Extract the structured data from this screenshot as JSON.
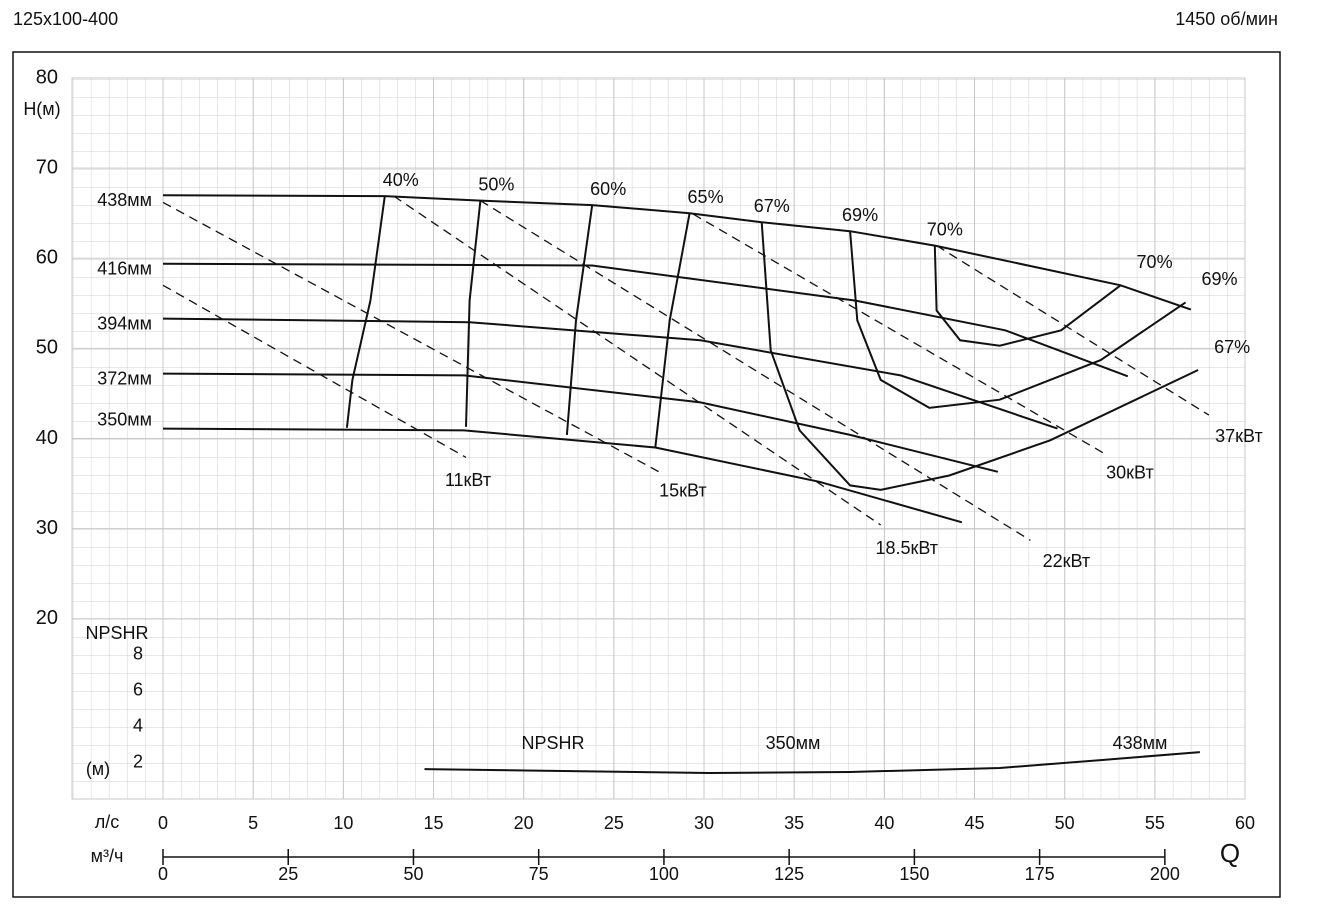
{
  "chart_data": {
    "type": "line",
    "title": "125х100-400",
    "subtitle": "1450 об/мин",
    "y_label": "Н(м)",
    "x_label": "л/с",
    "x2_label": "м³/ч",
    "x_symbol": "Q",
    "xlim": [
      0,
      60
    ],
    "xticks": [
      0,
      5,
      10,
      15,
      20,
      25,
      30,
      35,
      40,
      45,
      50,
      55,
      60
    ],
    "x2lim": [
      0,
      216
    ],
    "x2ticks": [
      0,
      25,
      50,
      75,
      100,
      125,
      150,
      175,
      200
    ],
    "ylim": [
      0,
      80
    ],
    "yticks": [
      20,
      30,
      40,
      50,
      60,
      70,
      80
    ],
    "y2_label": "NPSHR",
    "y2_unit": "(м)",
    "y2lim": [
      0,
      40
    ],
    "y2ticks": [
      2,
      4,
      6,
      8
    ],
    "grid": true,
    "series": [
      {
        "name": "438мм",
        "color": "#111111",
        "x": [
          0,
          12.3,
          17.6,
          23.8,
          29.2,
          33.2,
          38.1,
          42.8,
          53.1,
          57.0
        ],
        "values": [
          67.0,
          66.9,
          66.4,
          65.9,
          65.0,
          64.0,
          63.0,
          61.4,
          57.0,
          54.3
        ]
      },
      {
        "name": "416мм",
        "color": "#111111",
        "x": [
          0,
          23.8,
          38.4,
          46.7,
          53.5
        ],
        "values": [
          59.4,
          59.2,
          55.3,
          52.0,
          46.9
        ]
      },
      {
        "name": "394мм",
        "color": "#111111",
        "x": [
          0,
          17.0,
          29.8,
          40.9,
          49.6
        ],
        "values": [
          53.3,
          52.9,
          50.9,
          47.0,
          41.1
        ]
      },
      {
        "name": "372мм",
        "color": "#111111",
        "x": [
          0,
          16.7,
          29.8,
          38.1,
          46.3
        ],
        "values": [
          47.2,
          47.0,
          44.0,
          40.4,
          36.3
        ]
      },
      {
        "name": "350мм",
        "color": "#111111",
        "x": [
          0,
          16.7,
          27.3,
          36.4,
          44.3
        ],
        "values": [
          41.1,
          40.9,
          39.0,
          35.2,
          30.7
        ]
      }
    ],
    "efficiency_curves": [
      {
        "name": "40%",
        "x": [
          12.3,
          11.5,
          10.5,
          10.2
        ],
        "values": [
          66.9,
          55.3,
          46.5,
          41.2
        ]
      },
      {
        "name": "50%",
        "x": [
          17.6,
          17.0,
          16.8
        ],
        "values": [
          66.4,
          55.3,
          41.3
        ]
      },
      {
        "name": "60%",
        "x": [
          23.8,
          22.9,
          22.4
        ],
        "values": [
          65.9,
          53.1,
          40.4
        ]
      },
      {
        "name": "65%",
        "x": [
          29.2,
          28.1,
          27.3
        ],
        "values": [
          65.0,
          53.1,
          39.0
        ]
      },
      {
        "name": "67%",
        "labels": [
          "67%",
          "67%"
        ],
        "x": [
          33.2,
          33.7,
          35.3,
          38.1,
          39.8,
          43.6,
          49.2,
          57.4
        ],
        "values": [
          64.0,
          49.8,
          40.9,
          34.8,
          34.3,
          35.9,
          39.8,
          47.6
        ]
      },
      {
        "name": "69%",
        "labels": [
          "69%",
          "69%"
        ],
        "x": [
          38.1,
          38.5,
          39.8,
          42.5,
          46.4,
          52.0,
          56.7
        ],
        "values": [
          63.0,
          53.1,
          46.5,
          43.4,
          44.3,
          48.7,
          55.1
        ]
      },
      {
        "name": "70%",
        "labels": [
          "70%",
          "70%"
        ],
        "x": [
          42.8,
          42.9,
          44.2,
          46.4,
          49.8,
          53.1
        ],
        "values": [
          61.4,
          54.2,
          50.9,
          50.3,
          52.0,
          57.0
        ]
      }
    ],
    "power_lines": [
      {
        "name": "11кВт",
        "x": [
          0,
          16.8
        ],
        "values": [
          57.0,
          37.9
        ]
      },
      {
        "name": "15кВт",
        "x": [
          0,
          27.5
        ],
        "values": [
          66.2,
          36.3
        ]
      },
      {
        "name": "18.5кВт",
        "x": [
          12.8,
          39.8
        ],
        "values": [
          66.9,
          30.4
        ]
      },
      {
        "name": "22кВт",
        "x": [
          17.6,
          48.1
        ],
        "values": [
          66.4,
          28.7
        ]
      },
      {
        "name": "30кВт",
        "x": [
          29.4,
          52.4
        ],
        "values": [
          64.9,
          38.1
        ]
      },
      {
        "name": "37кВт",
        "x": [
          42.9,
          58.0
        ],
        "values": [
          61.4,
          42.6
        ]
      }
    ],
    "npshr": {
      "name": "NPSHR",
      "labels": [
        "350мм",
        "438мм"
      ],
      "axis": "y2",
      "x": [
        14.5,
        30.3,
        38.1,
        46.4,
        52.0,
        57.5
      ],
      "values": [
        1.66,
        1.44,
        1.5,
        1.72,
        2.16,
        2.6
      ]
    }
  }
}
